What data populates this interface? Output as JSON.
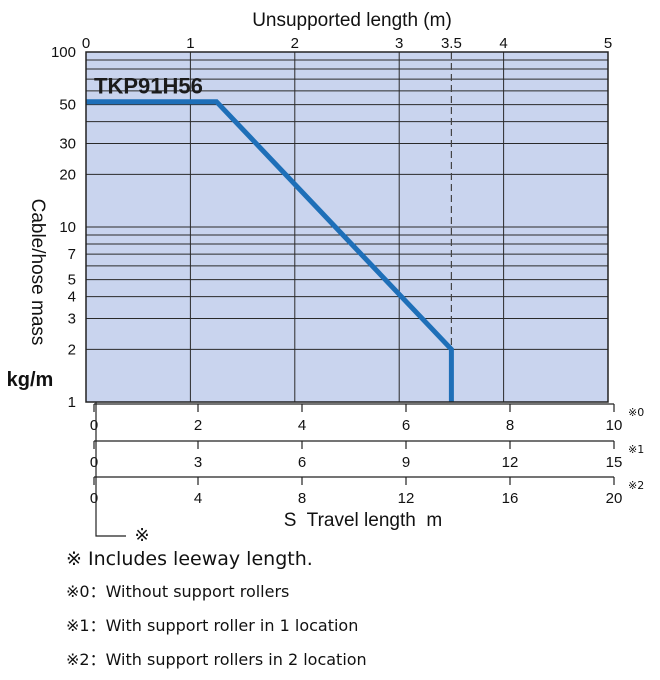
{
  "chart_data": {
    "type": "line",
    "series": [
      {
        "name": "TKP91H56",
        "x": [
          0,
          1.25,
          3.5,
          3.5
        ],
        "y": [
          52,
          52,
          2,
          1
        ],
        "color": "#1e6fb8"
      }
    ],
    "reference_line": {
      "x": 3.5,
      "label": "3.5",
      "style": "dashed"
    },
    "top_axis": {
      "label": "Unsupported length (m)",
      "range": [
        0,
        5
      ],
      "ticks": [
        0,
        1,
        2,
        3,
        4,
        5
      ]
    },
    "y_axis": {
      "label": "Cable/hose mass",
      "unit": "kg/m",
      "scale": "log",
      "range": [
        1,
        100
      ],
      "tick_labels": [
        1,
        2,
        3,
        4,
        5,
        7,
        10,
        20,
        30,
        50,
        100
      ],
      "gridlines": [
        1,
        2,
        3,
        4,
        5,
        6,
        7,
        8,
        9,
        10,
        20,
        30,
        40,
        50,
        60,
        70,
        80,
        90,
        100
      ]
    },
    "bottom_axes": [
      {
        "marker": "※0",
        "range": [
          0,
          10
        ],
        "ticks": [
          0,
          2,
          4,
          6,
          8,
          10
        ]
      },
      {
        "marker": "※1",
        "range": [
          0,
          15
        ],
        "ticks": [
          0,
          3,
          6,
          9,
          12,
          15
        ]
      },
      {
        "marker": "※2",
        "range": [
          0,
          20
        ],
        "ticks": [
          0,
          4,
          8,
          12,
          16,
          20
        ]
      }
    ],
    "bottom_axis_label": "S  Travel length  m",
    "leeway_marker": "※",
    "plot_background": "#c9d4ee",
    "grid": true
  },
  "notes": {
    "main": "※ Includes leeway length.",
    "items": [
      "※0：Without support rollers",
      "※1：With support roller in 1 location",
      "※2：With support rollers in 2 location"
    ]
  }
}
